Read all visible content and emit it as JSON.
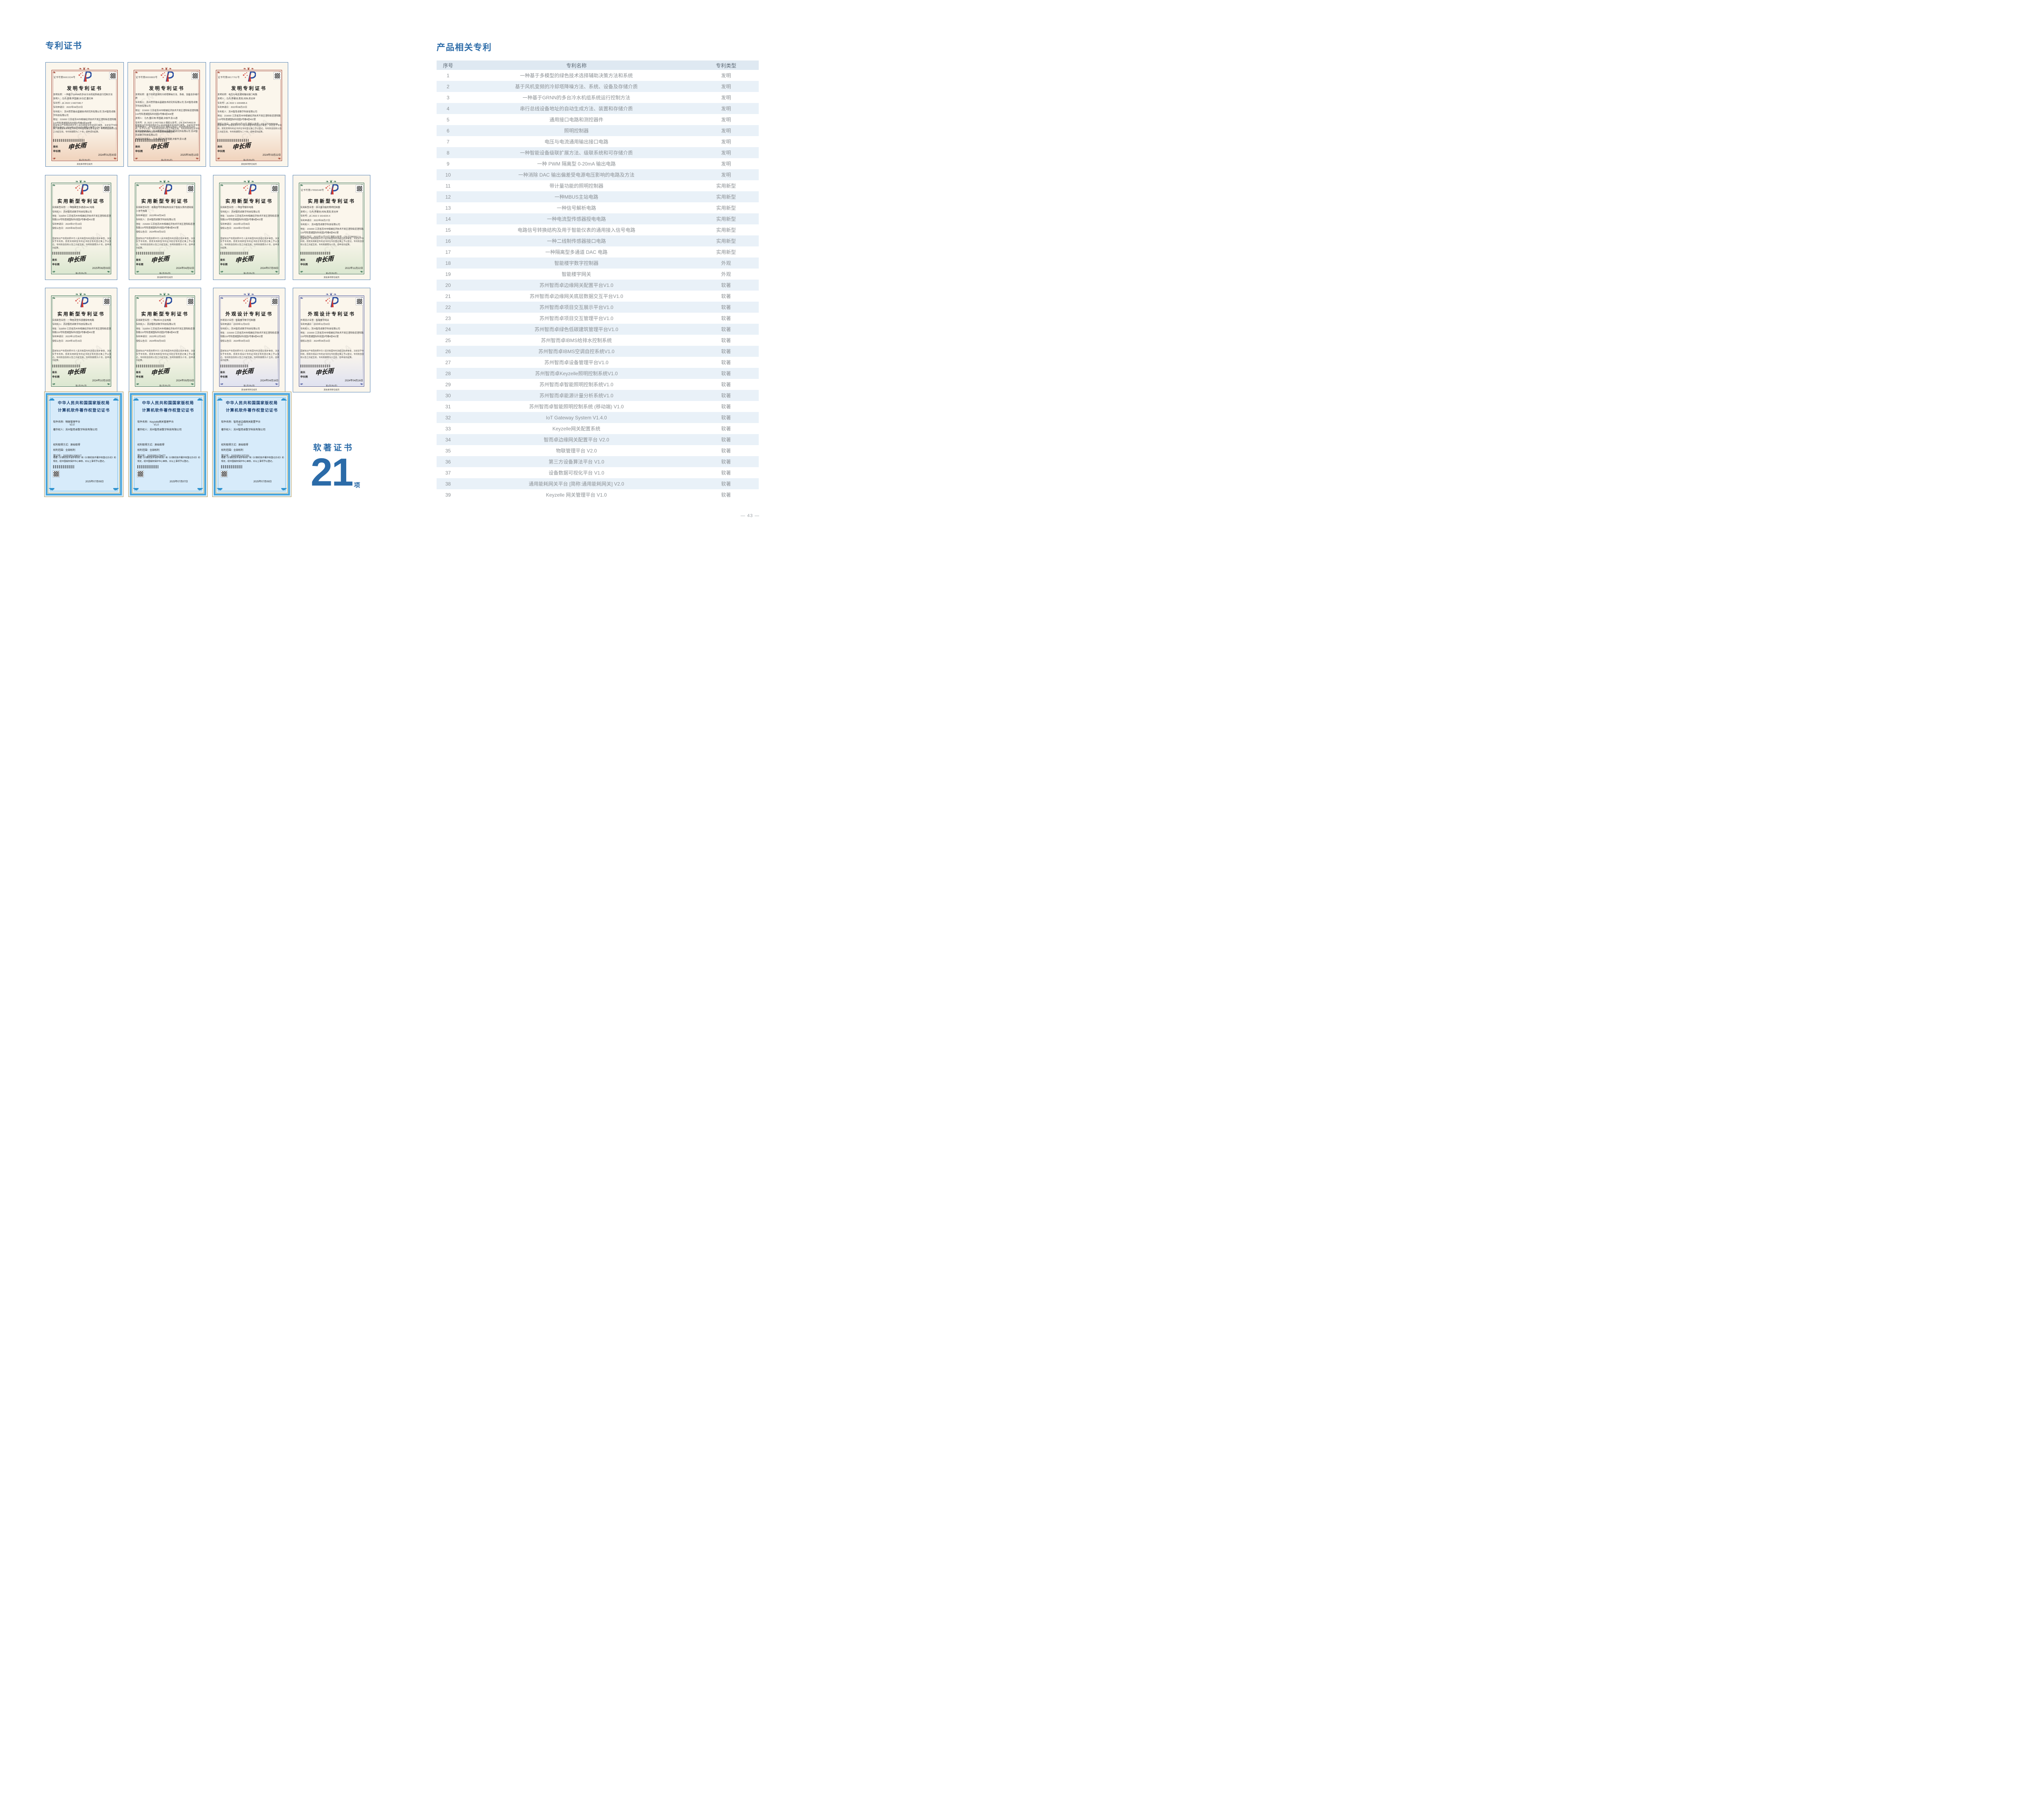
{
  "page": {
    "number": "— 43 —"
  },
  "left": {
    "title": "专利证书",
    "soft": {
      "label": "软著证书",
      "count": "21",
      "unit": "项"
    },
    "cert_rows": [
      {
        "certs": [
          {
            "theme": "invention",
            "kind": "patent",
            "cert_no": "证书号第6661534号",
            "title": "发明专利证书",
            "body": [
              "发明名称：一种基于GRNN的多台冷水机组系统运行控制方法",
              "发明人：马杰;袁琦;李国建;孙日近;董红林",
              "专利号：ZL 2022 1 0427340.7",
              "专利申请日：2022年04月22日",
              "专利权人：苏州思萃融合基建技术研究所有限公司 苏州智而卓数字科技有限公司",
              "地址：215000 江苏省苏州市相城经济技术开发区澄阳街道澄阳路116号阳澄湖国际科创园3号楼4层408室",
              "授权公告日：2024年01月30日  授权公告号：CN 114636212 B"
            ],
            "notice": "国家知识产权局依照中华人民共和国专利法进行审查，决定授予专利权，颁发发明专利证书并在专利登记簿上予以登记。专利权自授权公告之日起生效。专利权期限为二十年，自申请日起算。",
            "signer_title": "局长",
            "signer": "申长雨",
            "date": "2024年01月30日",
            "footer": "第1页(共2页)",
            "extra": "其他事项参见续页"
          },
          {
            "theme": "invention",
            "kind": "patent",
            "cert_no": "证书号第8000883号",
            "title": "发明专利证书",
            "body": [
              "发明名称：基于风机变频的冷却塔降噪方法、系统、设备及存储介质",
              "专利权人：苏州思萃融合基建技术研究所有限公司 苏州智而卓数字科技有限公司",
              "地址：215000 江苏省苏州市相城经济技术开发区澄阳街道澄阳路116号阳澄湖国际科创园3号楼4层408室",
              "发明人：马杰;董红林;李国建;沐俊华;彭士通",
              "专利号：ZL 2022 1 0427336.0  授权公告号：CN 114754603 B",
              "专利申请日：2022年04月22日  授权公告日：2025年06月13日",
              "申请日时申请人：苏州思萃融合基建技术研究所有限公司 苏州智而卓数字科技有限公司",
              "申请日时发明人：马杰;董红林;李国建;沐俊华;彭士通"
            ],
            "notice": "国家知识产权局依照中华人民共和国专利法进行审查，决定授予专利权，并予以公告。专利权自授权公告之日起生效。专利权有效性及专利权人变更等法律信息以专利登记簿记载为准。",
            "signer_title": "局长",
            "signer": "申长雨",
            "date": "2025年06月13日",
            "footer": "第1页(共1页)",
            "extra": ""
          },
          {
            "theme": "invention",
            "kind": "patent",
            "cert_no": "证书号第6817761号",
            "title": "发明专利证书",
            "body": [
              "发明名称：电压与电流通用输出接口电路",
              "发明人：马杰;李建池;黄亮;刘炜;吴志祥",
              "专利号：ZL 2022 1 1004495.6",
              "专利申请日：2022年08月22日",
              "专利权人：苏州智而卓数字科技有限公司",
              "地址：215000 江苏省苏州市相城经济技术开发区澄阳街道澄阳路116号阳澄湖国际科创园3号楼4层402室",
              "授权公告日：2024年03月22日  授权公告号：CN 115268558 B"
            ],
            "notice": "国家知识产权局依照中华人民共和国专利法进行审查，决定授予专利权，颁发发明专利证书并在专利登记簿上予以登记。专利权自授权公告之日起生效。专利权期限为二十年，自申请日起算。",
            "signer_title": "局长",
            "signer": "申长雨",
            "date": "2024年03月22日",
            "footer": "第1页(共2页)",
            "extra": "其他事项参见续页"
          }
        ]
      },
      {
        "certs": [
          {
            "theme": "utility",
            "kind": "patent",
            "cert_no": "",
            "title": "实用新型专利证书",
            "body": [
              "实用新型名称：一种隔离型多通道DAC电路",
              "专利权人：苏州智而卓数字科技有限公司",
              "地址：215000 江苏省苏州市相城经济技术开发区澄阳街道澄阳路116号阳澄湖国际科创园3号楼4层402室",
              "专利申请日：2024年07月19日",
              "授权公告日：2025年06月03日"
            ],
            "notice": "国家知识产权局依照中华人民共和国专利法经过初步审查，决定授予专利权，颁发实用新型专利证书并在专利登记簿上予以登记。专利权自授权公告之日起生效，专利权期限为十年，自申请日起算。",
            "signer_title": "局长",
            "signer": "申长雨",
            "date": "2025年06月03日",
            "footer": "第1页(共1页)",
            "extra": ""
          },
          {
            "theme": "utility",
            "kind": "patent",
            "cert_no": "",
            "title": "实用新型专利证书",
            "body": [
              "实用新型名称：电路信号转换结构及用于智能仪表的通用接入信号电路",
              "专利申请日：2023年04月04日",
              "专利权人：苏州智而卓数字科技有限公司",
              "地址：215000 江苏省苏州市相城经济技术开发区澄阳街道澄阳路116号阳澄湖国际科创园3号楼4层402室",
              "授权公告日：2024年04月02日"
            ],
            "notice": "国家知识产权局依照中华人民共和国专利法经过初步审查，决定授予专利权，颁发实用新型专利证书并在专利登记簿上予以登记。专利权自授权公告之日起生效，专利权期限为十年，自申请日起算。",
            "signer_title": "局长",
            "signer": "申长雨",
            "date": "2024年04月02日",
            "footer": "第1页(共2页)",
            "extra": "其他事项参见续页"
          },
          {
            "theme": "utility",
            "kind": "patent",
            "cert_no": "",
            "title": "实用新型专利证书",
            "body": [
              "实用新型名称：一种信号解析电路",
              "专利权人：苏州智而卓数字科技有限公司",
              "地址：215000 江苏省苏州市相城经济技术开发区澄阳街道澄阳路116号阳澄湖国际科创园3号楼4层402室",
              "专利申请日：2023年12月06日",
              "授权公告日：2024年07月09日"
            ],
            "notice": "国家知识产权局依照中华人民共和国专利法经过初步审查，决定授予专利权，颁发实用新型专利证书并在专利登记簿上予以登记。专利权自授权公告之日起生效，专利权期限为十年，自申请日起算。",
            "signer_title": "局长",
            "signer": "申长雨",
            "date": "2024年07月09日",
            "footer": "第1页(共1页)",
            "extra": ""
          },
          {
            "theme": "utility",
            "kind": "patent",
            "cert_no": "证书号第17856548号",
            "title": "实用新型专利证书",
            "body": [
              "实用新型名称：带计量功能的照明控制器",
              "发明人：马杰;李建池;刘炜;黄亮;吴志祥",
              "专利号：ZL 2022 2 1614220.X",
              "专利申请日：2022年06月27日",
              "专利权人：苏州智而卓数字科技有限公司",
              "地址：215000 江苏省苏州市相城经济技术开发区澄阳街道澄阳路116号阳澄湖国际科创园3号楼4层402室",
              "授权公告日：2022年11月22日  授权公告号：CN 217883912 U"
            ],
            "notice": "国家知识产权局依照中华人民共和国专利法经过初步审查，决定授予专利权，颁发实用新型专利证书并在专利登记簿上予以登记。专利权自授权公告之日起生效，专利权期限为十年，自申请日起算。",
            "signer_title": "局长",
            "signer": "申长雨",
            "date": "2022年11月22日",
            "footer": "第1页(共2页)",
            "extra": "其他事项参见续页"
          }
        ]
      },
      {
        "certs": [
          {
            "theme": "utility",
            "kind": "patent",
            "cert_no": "",
            "title": "实用新型专利证书",
            "body": [
              "实用新型名称：一种电流型传感器授电电路",
              "专利权人：苏州智而卓数字科技有限公司",
              "地址：215000 江苏省苏州市相城经济技术开发区澄阳街道澄阳路116号阳澄湖国际科创园3号楼4层402室",
              "专利申请日：2023年12月06日",
              "授权公告日：2024年10月15日"
            ],
            "notice": "国家知识产权局依照中华人民共和国专利法经过初步审查，决定授予专利权，颁发实用新型专利证书并在专利登记簿上予以登记。专利权自授权公告之日起生效，专利权期限为十年，自申请日起算。",
            "signer_title": "局长",
            "signer": "申长雨",
            "date": "2024年10月15日",
            "footer": "第1页(共1页)",
            "extra": ""
          },
          {
            "theme": "utility",
            "kind": "patent",
            "cert_no": "",
            "title": "实用新型专利证书",
            "body": [
              "实用新型名称：一种MBUS主站电路",
              "专利权人：苏州智而卓数字科技有限公司",
              "地址：215000 江苏省苏州市相城经济技术开发区澄阳街道澄阳路116号阳澄湖国际科创园3号楼4层402室",
              "专利申请日：2023年12月28日",
              "授权公告日：2024年09月03日"
            ],
            "notice": "国家知识产权局依照中华人民共和国专利法经过初步审查，决定授予专利权，颁发实用新型专利证书并在专利登记簿上予以登记。专利权自授权公告之日起生效，专利权期限为十年，自申请日起算。",
            "signer_title": "局长",
            "signer": "申长雨",
            "date": "2024年09月03日",
            "footer": "第1页(共1页)",
            "extra": ""
          },
          {
            "theme": "design",
            "kind": "patent",
            "cert_no": "",
            "title": "外观设计专利证书",
            "body": [
              "外观设计名称：智能楼宇数字控制器",
              "专利申请日：2023年11月02日",
              "专利权人：苏州智而卓数字科技有限公司",
              "地址：215000 江苏省苏州市相城经济技术开发区澄阳街道澄阳路116号阳澄湖国际科创园3号楼4层402室",
              "授权公告日：2024年04月16日"
            ],
            "notice": "国家知识产权局依照中华人民共和国专利法经过初步审查，决定授予专利权，颁发外观设计专利证书并在专利登记簿上予以登记。专利权自授权公告之日起生效，专利权期限为十五年，自申请日起算。",
            "signer_title": "局长",
            "signer": "申长雨",
            "date": "2024年04月16日",
            "footer": "第1页(共2页)",
            "extra": "其他事项参见续页"
          },
          {
            "theme": "design",
            "kind": "patent",
            "cert_no": "",
            "title": "外观设计专利证书",
            "body": [
              "外观设计名称：智能楼宇网关",
              "专利申请日：2023年11月02日",
              "专利权人：苏州智而卓数字科技有限公司",
              "地址：215000 江苏省苏州市相城经济技术开发区澄阳街道澄阳路116号阳澄湖国际科创园3号楼4层402室",
              "授权公告日：2024年04月16日"
            ],
            "notice": "国家知识产权局依照中华人民共和国专利法经过初步审查，决定授予专利权，颁发外观设计专利证书并在专利登记簿上予以登记。专利权自授权公告之日起生效，专利权期限为十五年，自申请日起算。",
            "signer_title": "局长",
            "signer": "申长雨",
            "date": "2024年04月16日",
            "footer": "第1页(共2页)",
            "extra": "其他事项参见续页"
          }
        ]
      },
      {
        "certs": [
          {
            "theme": "software",
            "kind": "software",
            "title1": "中华人民共和国国家版权局",
            "title2": "计算机软件著作权登记证书",
            "name_line": "软件名称：物联管理平台",
            "version": "V2.0",
            "owner": "著作权人：苏州智而卓数字科技有限公司",
            "rights": [
              "权利取得方式：原始取得",
              "权利范围：全部权利",
              "登记号：2025SR1208317"
            ],
            "notice": "根据《计算机软件保护条例》和《计算机软件著作权登记办法》的规定，经中国版权保护中心审核，对以上事项予以登记。",
            "date": "2025年07月09日"
          },
          {
            "theme": "software",
            "kind": "software",
            "title1": "中华人民共和国国家版权局",
            "title2": "计算机软件著作权登记证书",
            "name_line": "软件名称：Keyzelle网关管理平台",
            "version": "V1.0",
            "owner": "著作权人：苏州智而卓数字科技有限公司",
            "rights": [
              "权利取得方式：原始取得",
              "权利范围：全部权利",
              "登记号：2025SR1179477"
            ],
            "notice": "根据《计算机软件保护条例》和《计算机软件著作权登记办法》的规定，经中国版权保护中心审核，对以上事项予以登记。",
            "date": "2025年07月07日"
          },
          {
            "theme": "software",
            "kind": "software",
            "title1": "中华人民共和国国家版权局",
            "title2": "计算机软件著作权登记证书",
            "name_line": "软件名称：智而卓边缘网关配置平台",
            "version": "V2.0",
            "owner": "著作权人：苏州智而卓数字科技有限公司",
            "rights": [
              "权利取得方式：原始取得",
              "权利范围：全部权利",
              "登记号：2025SR1207251"
            ],
            "notice": "根据《计算机软件保护条例》和《计算机软件著作权登记办法》的规定，经中国版权保护中心审核，对以上事项予以登记。",
            "date": "2025年07月09日"
          }
        ]
      }
    ]
  },
  "right": {
    "title": "产品相关专利",
    "table": {
      "headers": [
        "序号",
        "专利名称",
        "专利类型"
      ],
      "rows": [
        {
          "no": "1",
          "name": "一种基于多模型的绿色技术选择辅助决策方法和系统",
          "type": "发明"
        },
        {
          "no": "2",
          "name": "基于风机变频的冷却塔降噪方法、系统、设备及存储介质",
          "type": "发明"
        },
        {
          "no": "3",
          "name": "一种基于GRNN的多台冷水机组系统运行控制方法",
          "type": "发明"
        },
        {
          "no": "4",
          "name": "串行总线设备地址的自动生成方法、装置和存储介质",
          "type": "发明"
        },
        {
          "no": "5",
          "name": "通用接口电路和测控器件",
          "type": "发明"
        },
        {
          "no": "6",
          "name": "照明控制器",
          "type": "发明"
        },
        {
          "no": "7",
          "name": "电压与电流通用输出接口电路",
          "type": "发明"
        },
        {
          "no": "8",
          "name": "一种智能设备级联扩展方法、级联系统和可存储介质",
          "type": "发明"
        },
        {
          "no": "9",
          "name": "一种 PWM 隔离型 0-20mA 输出电路",
          "type": "发明"
        },
        {
          "no": "10",
          "name": "一种消除 DAC 输出偏差受电源电压影响的电路及方法",
          "type": "发明"
        },
        {
          "no": "11",
          "name": "带计量功能的照明控制器",
          "type": "实用新型"
        },
        {
          "no": "12",
          "name": "一种MBUS主站电路",
          "type": "实用新型"
        },
        {
          "no": "13",
          "name": "一种信号解析电路",
          "type": "实用新型"
        },
        {
          "no": "14",
          "name": "一种电流型传感器授电电路",
          "type": "实用新型"
        },
        {
          "no": "15",
          "name": "电路信号转换结构及用于智能仪表的通用接入信号电路",
          "type": "实用新型"
        },
        {
          "no": "16",
          "name": "一种二线制传感器接口电路",
          "type": "实用新型"
        },
        {
          "no": "17",
          "name": "一种隔离型多通道 DAC 电路",
          "type": "实用新型"
        },
        {
          "no": "18",
          "name": "智能楼宇数字控制器",
          "type": "外观"
        },
        {
          "no": "19",
          "name": "智能楼宇网关",
          "type": "外观"
        },
        {
          "no": "20",
          "name": "苏州智而卓边缘网关配置平台V1.0",
          "type": "软著"
        },
        {
          "no": "21",
          "name": "苏州智而卓边缘网关底层数据交互平台V1.0",
          "type": "软著"
        },
        {
          "no": "22",
          "name": "苏州智而卓项目交互展示平台V1.0",
          "type": "软著"
        },
        {
          "no": "23",
          "name": "苏州智而卓项目交互管理平台V1.0",
          "type": "软著"
        },
        {
          "no": "24",
          "name": "苏州智而卓绿色低碳建筑管理平台V1.0",
          "type": "软著"
        },
        {
          "no": "25",
          "name": "苏州智而卓IBMS给排水控制系统",
          "type": "软著"
        },
        {
          "no": "26",
          "name": "苏州智而卓IBMS空调自控系统V1.0",
          "type": "软著"
        },
        {
          "no": "27",
          "name": "苏州智而卓设备管理平台V1.0",
          "type": "软著"
        },
        {
          "no": "28",
          "name": "苏州智而卓Keyzelle照明控制系统V1.0",
          "type": "软著"
        },
        {
          "no": "29",
          "name": "苏州智而卓智能照明控制系统V1.0",
          "type": "软著"
        },
        {
          "no": "30",
          "name": "苏州智而卓能源计量分析系统V1.0",
          "type": "软著"
        },
        {
          "no": "31",
          "name": "苏州智而卓智能照明控制系统 (移动端) V1.0",
          "type": "软著"
        },
        {
          "no": "32",
          "name": "IoT Gateway System V1.4.0",
          "type": "软著"
        },
        {
          "no": "33",
          "name": "Keyzelle网关配置系统",
          "type": "软著"
        },
        {
          "no": "34",
          "name": "智而卓边缘网关配置平台 V2.0",
          "type": "软著"
        },
        {
          "no": "35",
          "name": "物联管理平台 V2.0",
          "type": "软著"
        },
        {
          "no": "36",
          "name": "第三方设备算法平台 V1.0",
          "type": "软著"
        },
        {
          "no": "37",
          "name": "设备数据可视化平台 V1.0",
          "type": "软著"
        },
        {
          "no": "38",
          "name": "通用能耗网关平台 [简称:通用能耗网关] V2.0",
          "type": "软著"
        },
        {
          "no": "39",
          "name": "Keyzelle 网关管理平台 V1.0",
          "type": "软著"
        }
      ]
    }
  }
}
